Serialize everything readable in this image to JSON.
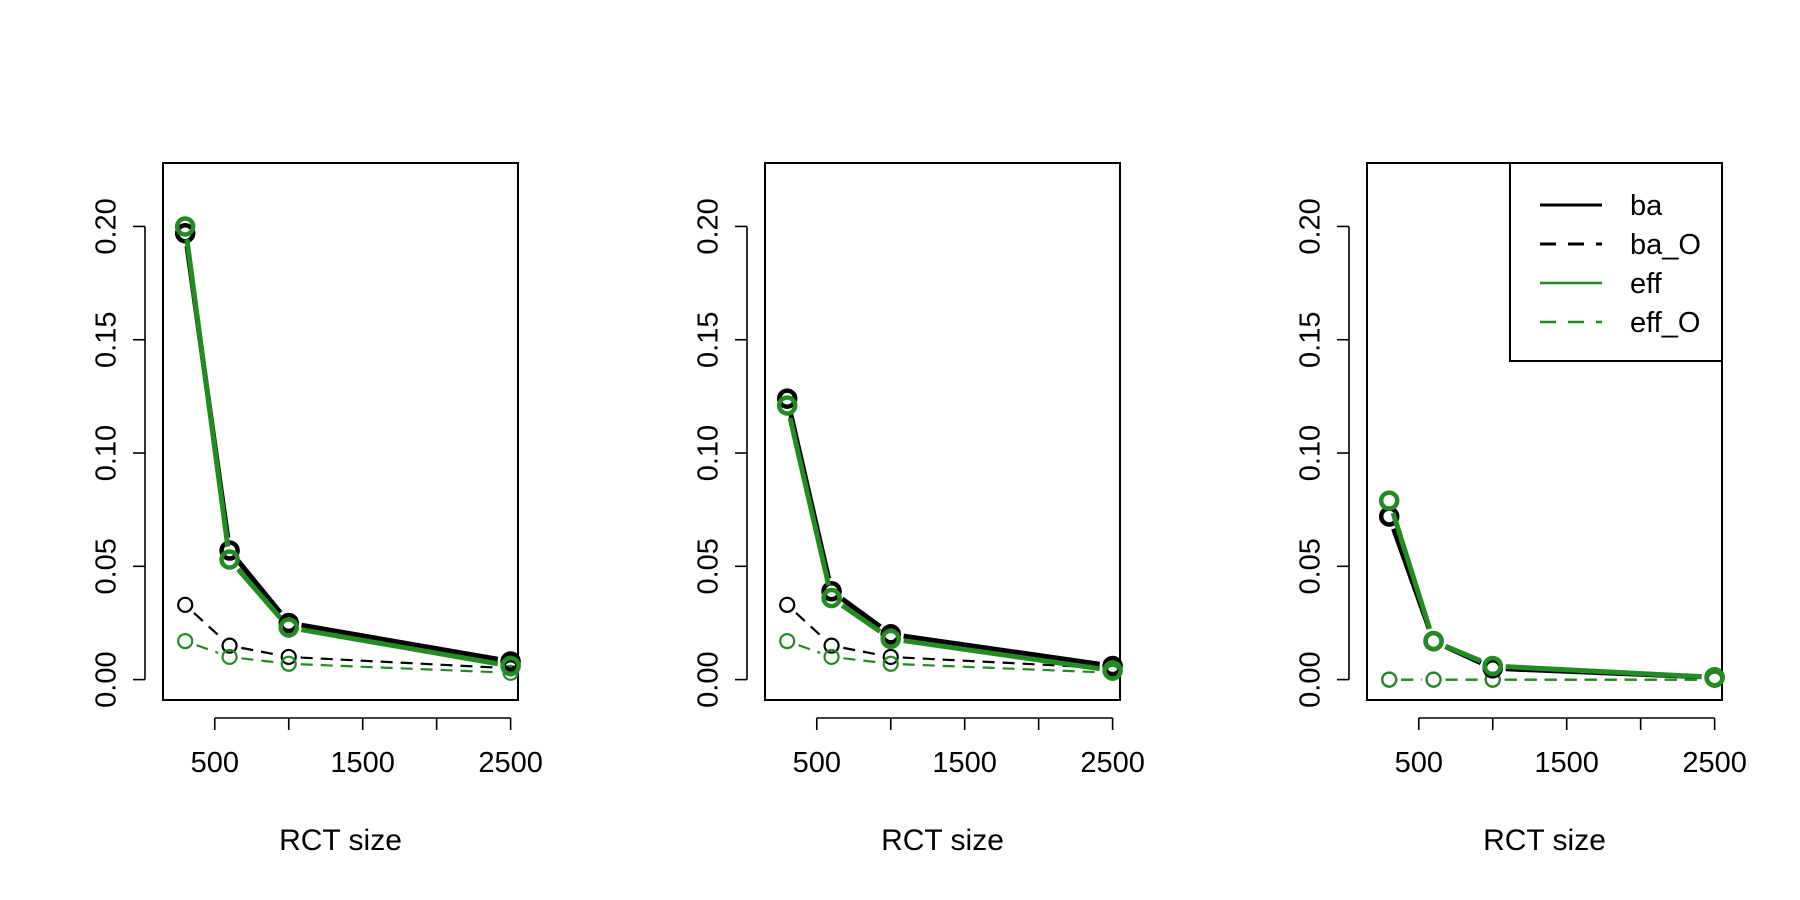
{
  "chart_data": [
    {
      "type": "line",
      "xlabel": "RCT size",
      "ylabel": "",
      "x": [
        300,
        600,
        1000,
        2500
      ],
      "xlim": [
        150,
        2550
      ],
      "ylim": [
        -0.009,
        0.228
      ],
      "xticks": [
        500,
        1000,
        1500,
        2000,
        2500
      ],
      "xtick_labels": [
        "500",
        "",
        "1500",
        "",
        "2500"
      ],
      "yticks": [
        0.0,
        0.05,
        0.1,
        0.15,
        0.2
      ],
      "ytick_labels": [
        "0.00",
        "0.05",
        "0.10",
        "0.15",
        "0.20"
      ],
      "series": [
        {
          "name": "ba",
          "color": "#000000",
          "dash": "solid",
          "weight": "thick",
          "values": [
            0.197,
            0.057,
            0.025,
            0.008
          ]
        },
        {
          "name": "ba_O",
          "color": "#000000",
          "dash": "dashed",
          "weight": "thin",
          "values": [
            0.033,
            0.015,
            0.01,
            0.005
          ]
        },
        {
          "name": "eff",
          "color": "#228B22",
          "dash": "solid",
          "weight": "thick",
          "values": [
            0.2,
            0.053,
            0.023,
            0.006
          ]
        },
        {
          "name": "eff_O",
          "color": "#228B22",
          "dash": "dashed",
          "weight": "thin",
          "values": [
            0.017,
            0.01,
            0.007,
            0.003
          ]
        }
      ]
    },
    {
      "type": "line",
      "xlabel": "RCT size",
      "ylabel": "",
      "x": [
        300,
        600,
        1000,
        2500
      ],
      "xlim": [
        150,
        2550
      ],
      "ylim": [
        -0.009,
        0.228
      ],
      "xticks": [
        500,
        1000,
        1500,
        2000,
        2500
      ],
      "xtick_labels": [
        "500",
        "",
        "1500",
        "",
        "2500"
      ],
      "yticks": [
        0.0,
        0.05,
        0.1,
        0.15,
        0.2
      ],
      "ytick_labels": [
        "0.00",
        "0.05",
        "0.10",
        "0.15",
        "0.20"
      ],
      "series": [
        {
          "name": "ba",
          "color": "#000000",
          "dash": "solid",
          "weight": "thick",
          "values": [
            0.124,
            0.039,
            0.02,
            0.006
          ]
        },
        {
          "name": "ba_O",
          "color": "#000000",
          "dash": "dashed",
          "weight": "thin",
          "values": [
            0.033,
            0.015,
            0.01,
            0.005
          ]
        },
        {
          "name": "eff",
          "color": "#228B22",
          "dash": "solid",
          "weight": "thick",
          "values": [
            0.121,
            0.036,
            0.018,
            0.004
          ]
        },
        {
          "name": "eff_O",
          "color": "#228B22",
          "dash": "dashed",
          "weight": "thin",
          "values": [
            0.017,
            0.01,
            0.007,
            0.003
          ]
        }
      ]
    },
    {
      "type": "line",
      "xlabel": "RCT size",
      "ylabel": "",
      "x": [
        300,
        600,
        1000,
        2500
      ],
      "xlim": [
        150,
        2550
      ],
      "ylim": [
        -0.009,
        0.228
      ],
      "xticks": [
        500,
        1000,
        1500,
        2000,
        2500
      ],
      "xtick_labels": [
        "500",
        "",
        "1500",
        "",
        "2500"
      ],
      "yticks": [
        0.0,
        0.05,
        0.1,
        0.15,
        0.2
      ],
      "ytick_labels": [
        "0.00",
        "0.05",
        "0.10",
        "0.15",
        "0.20"
      ],
      "legend": {
        "placement": "top-right",
        "entries": [
          "ba",
          "ba_O",
          "eff",
          "eff_O"
        ]
      },
      "series": [
        {
          "name": "ba",
          "color": "#000000",
          "dash": "solid",
          "weight": "thick",
          "values": [
            0.072,
            0.017,
            0.005,
            0.001
          ]
        },
        {
          "name": "ba_O",
          "color": "#000000",
          "dash": "dashed",
          "weight": "thin",
          "values": [
            0.0,
            0.0,
            0.0,
            0.0
          ]
        },
        {
          "name": "eff",
          "color": "#228B22",
          "dash": "solid",
          "weight": "thick",
          "values": [
            0.079,
            0.017,
            0.006,
            0.001
          ]
        },
        {
          "name": "eff_O",
          "color": "#228B22",
          "dash": "dashed",
          "weight": "thin",
          "values": [
            0.0,
            0.0,
            0.0,
            0.0
          ]
        }
      ]
    }
  ]
}
